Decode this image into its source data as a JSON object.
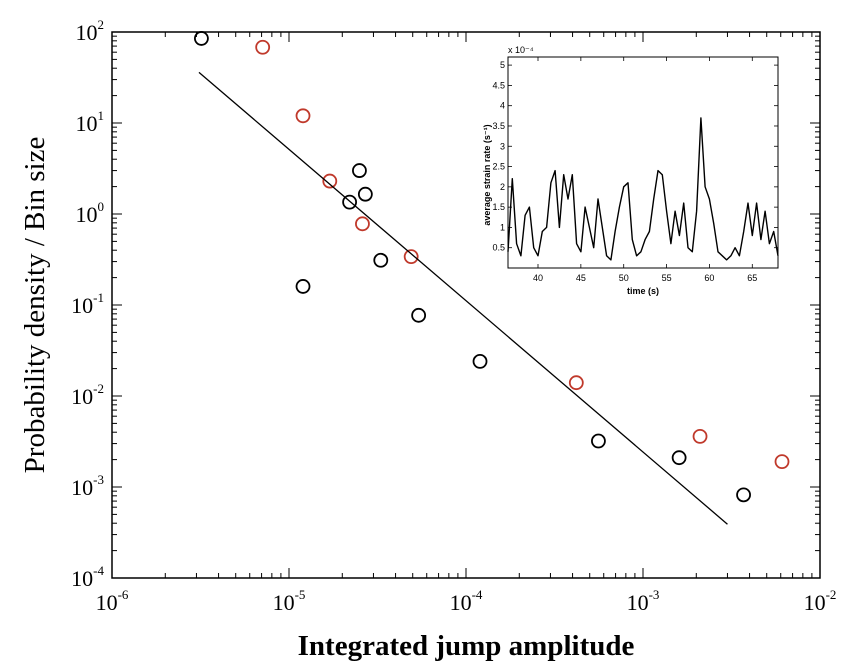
{
  "chart_data": [
    {
      "type": "scatter",
      "xlabel": "Integrated jump amplitude",
      "ylabel": "Probability density / Bin size",
      "xscale": "log",
      "yscale": "log",
      "xlim": [
        1e-06,
        0.01
      ],
      "ylim": [
        0.0001,
        100.0
      ],
      "x_ticks": [
        {
          "base": "10",
          "exp": "-6"
        },
        {
          "base": "10",
          "exp": "-5"
        },
        {
          "base": "10",
          "exp": "-4"
        },
        {
          "base": "10",
          "exp": "-3"
        },
        {
          "base": "10",
          "exp": "-2"
        }
      ],
      "y_ticks": [
        {
          "base": "10",
          "exp": "-4"
        },
        {
          "base": "10",
          "exp": "-3"
        },
        {
          "base": "10",
          "exp": "-2"
        },
        {
          "base": "10",
          "exp": "-1"
        },
        {
          "base": "10",
          "exp": "0"
        },
        {
          "base": "10",
          "exp": "1"
        },
        {
          "base": "10",
          "exp": "2"
        }
      ],
      "grid": false,
      "colors": {
        "black_markers": "#000000",
        "red_markers": "#c0392b",
        "fit_line": "#000000"
      },
      "series": [
        {
          "marker": "open-circle",
          "color": "black",
          "points": [
            {
              "x": 3.2e-06,
              "y": 85
            },
            {
              "x": 1.2e-05,
              "y": 0.16
            },
            {
              "x": 2.2e-05,
              "y": 1.35
            },
            {
              "x": 2.5e-05,
              "y": 3.0
            },
            {
              "x": 2.7e-05,
              "y": 1.65
            },
            {
              "x": 3.3e-05,
              "y": 0.31
            },
            {
              "x": 5.4e-05,
              "y": 0.077
            },
            {
              "x": 0.00012,
              "y": 0.024
            },
            {
              "x": 0.00056,
              "y": 0.0032
            },
            {
              "x": 0.0016,
              "y": 0.0021
            },
            {
              "x": 0.0037,
              "y": 0.00082
            }
          ]
        },
        {
          "marker": "open-circle",
          "color": "red",
          "points": [
            {
              "x": 7.1e-06,
              "y": 68
            },
            {
              "x": 1.2e-05,
              "y": 12
            },
            {
              "x": 1.7e-05,
              "y": 2.3
            },
            {
              "x": 2.6e-05,
              "y": 0.78
            },
            {
              "x": 4.9e-05,
              "y": 0.34
            },
            {
              "x": 0.00042,
              "y": 0.014
            },
            {
              "x": 0.0021,
              "y": 0.0036
            },
            {
              "x": 0.0061,
              "y": 0.0019
            }
          ]
        },
        {
          "type": "line",
          "color": "black",
          "points": [
            {
              "x": 3.1e-06,
              "y": 36
            },
            {
              "x": 0.003,
              "y": 0.00039
            }
          ]
        }
      ]
    },
    {
      "type": "line",
      "xlabel": "time (s)",
      "ylabel": "average strain rate (s⁻¹)",
      "exponent_label": "x 10⁻⁴",
      "xlim": [
        36.5,
        68
      ],
      "ylim": [
        0,
        5.2
      ],
      "x_ticks": [
        "40",
        "45",
        "50",
        "55",
        "60",
        "65"
      ],
      "y_ticks": [
        "0.5",
        "1",
        "1.5",
        "2",
        "2.5",
        "3",
        "3.5",
        "4",
        "4.5",
        "5"
      ],
      "x": [
        36.5,
        37.0,
        37.5,
        38.0,
        38.5,
        39.0,
        39.5,
        40.0,
        40.5,
        41.0,
        41.5,
        42.0,
        42.5,
        43.0,
        43.5,
        44.0,
        44.5,
        45.0,
        45.5,
        46.0,
        46.5,
        47.0,
        47.5,
        48.0,
        48.5,
        49.0,
        49.5,
        50.0,
        50.5,
        51.0,
        51.5,
        52.0,
        52.5,
        53.0,
        53.5,
        54.0,
        54.5,
        55.0,
        55.5,
        56.0,
        56.5,
        57.0,
        57.5,
        58.0,
        58.5,
        59.0,
        59.5,
        60.0,
        60.5,
        61.0,
        61.5,
        62.0,
        62.5,
        63.0,
        63.5,
        64.0,
        64.5,
        65.0,
        65.5,
        66.0,
        66.5,
        67.0,
        67.5,
        68.0
      ],
      "y": [
        0.4,
        2.2,
        0.6,
        0.3,
        1.3,
        1.5,
        0.5,
        0.3,
        0.9,
        1.0,
        2.1,
        2.4,
        1.0,
        2.3,
        1.7,
        2.3,
        0.6,
        0.4,
        1.5,
        1.0,
        0.5,
        1.7,
        1.0,
        0.3,
        0.2,
        0.9,
        1.5,
        2.0,
        2.1,
        0.7,
        0.3,
        0.4,
        0.7,
        0.9,
        1.7,
        2.4,
        2.3,
        1.4,
        0.6,
        1.4,
        0.8,
        1.6,
        0.5,
        0.4,
        1.4,
        3.7,
        2.0,
        1.7,
        1.1,
        0.4,
        0.3,
        0.2,
        0.3,
        0.5,
        0.3,
        0.9,
        1.6,
        0.8,
        1.6,
        0.7,
        1.4,
        0.6,
        0.9,
        0.3
      ]
    }
  ]
}
